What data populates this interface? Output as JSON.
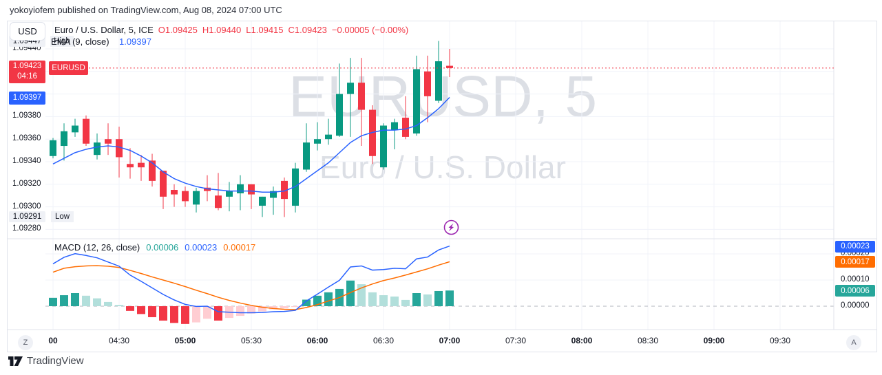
{
  "banner": {
    "text": "yokoyiofem published on TradingView.com, Aug 08, 2024 07:00 UTC"
  },
  "header": {
    "currency_button": "USD",
    "symbol": {
      "title": "Euro / U.S. Dollar, 5, ICE",
      "o": "O1.09425",
      "h": "H1.09440",
      "l": "L1.09415",
      "c": "C1.09423",
      "chg": "−0.00005 (−0.00%)"
    },
    "ema": {
      "badge": "High",
      "label": "EMA (9, close)",
      "value": "1.09397"
    }
  },
  "macd_legend": {
    "label": "MACD (12, 26, close)",
    "hist_value": "0.00006",
    "macd_value": "0.00023",
    "signal_value": "0.00017"
  },
  "badges": {
    "symbol": "EURUSD",
    "last_price": "1.09423",
    "countdown": "04:16",
    "ema_value": "1.09397",
    "high_price": "1.09447",
    "low_price": "1.09291",
    "low_tag": "Low"
  },
  "watermark": {
    "line1": "EURUSD, 5",
    "line2": "Euro / U.S. Dollar"
  },
  "left_axis": {
    "labels": [
      {
        "text": "1.09440",
        "price": 1.0944
      },
      {
        "text": "1.09380",
        "price": 1.0938
      },
      {
        "text": "1.09360",
        "price": 1.0936
      },
      {
        "text": "1.09340",
        "price": 1.0934
      },
      {
        "text": "1.09320",
        "price": 1.0932
      },
      {
        "text": "1.09300",
        "price": 1.093
      },
      {
        "text": "1.09280",
        "price": 1.0928
      }
    ]
  },
  "right_axis": {
    "labels": [
      {
        "text": "0.00020",
        "value": 0.0002
      },
      {
        "text": "0.00010",
        "value": 0.0001
      },
      {
        "text": "0.00000",
        "value": 0.0
      }
    ],
    "macd_badge": {
      "text": "0.00023",
      "value": 0.00023
    },
    "signal_badge": {
      "text": "0.00017",
      "value": 0.00017
    },
    "hist_badge": {
      "text": "0.00006",
      "value": 6e-05
    }
  },
  "time_axis": {
    "ticks": [
      {
        "label": "00",
        "bold": true
      },
      {
        "label": "04:30",
        "bold": false
      },
      {
        "label": "05:00",
        "bold": true
      },
      {
        "label": "05:30",
        "bold": false
      },
      {
        "label": "06:00",
        "bold": true
      },
      {
        "label": "06:30",
        "bold": false
      },
      {
        "label": "07:00",
        "bold": true
      },
      {
        "label": "07:30",
        "bold": false
      },
      {
        "label": "08:00",
        "bold": true
      },
      {
        "label": "08:30",
        "bold": false
      },
      {
        "label": "09:00",
        "bold": true
      },
      {
        "label": "09:30",
        "bold": false
      }
    ]
  },
  "buttons": {
    "zoom_label": "Z",
    "auto_label": "A"
  },
  "footer": {
    "brand": "TradingView"
  },
  "colors": {
    "up": "#089981",
    "down": "#f23645",
    "ema": "#2962ff",
    "macd_line": "#2962ff",
    "signal_line": "#ff6d00",
    "hist_grow_above": "#26a69a",
    "hist_fall_above": "#b2dfdb",
    "hist_fall_below": "#f23645",
    "hist_grow_below": "#ffcdd2",
    "grid": "#f0f3fa",
    "border": "#e0e3eb",
    "zero_dash": "#b2b5be",
    "text": "#131722",
    "watermark": "#dcdfe5",
    "flash": "#9c27b0",
    "badge_gray": "#eff1f6"
  },
  "chart_data": [
    {
      "type": "candlestick",
      "title": "Euro / U.S. Dollar, 5, ICE",
      "interval": "5",
      "x_ticks": [
        "00",
        "04:30",
        "05:00",
        "05:30",
        "06:00",
        "06:30",
        "07:00",
        "07:30",
        "08:00",
        "08:30",
        "09:00",
        "09:30"
      ],
      "ylim": [
        1.09268,
        1.09464
      ],
      "grid_step": 0.0002,
      "last_price": 1.09423,
      "ema_value": 1.09397,
      "session_high": 1.09447,
      "session_low": 1.09291,
      "times": [
        "04:00",
        "04:05",
        "04:10",
        "04:15",
        "04:20",
        "04:25",
        "04:30",
        "04:35",
        "04:40",
        "04:45",
        "04:50",
        "04:55",
        "05:00",
        "05:05",
        "05:10",
        "05:15",
        "05:20",
        "05:25",
        "05:30",
        "05:35",
        "05:40",
        "05:45",
        "05:50",
        "05:55",
        "06:00",
        "06:05",
        "06:10",
        "06:15",
        "06:20",
        "06:25",
        "06:30",
        "06:35",
        "06:40",
        "06:45",
        "06:50",
        "06:55",
        "07:00"
      ],
      "ohlc": [
        [
          1.09345,
          1.09361,
          1.09343,
          1.09359
        ],
        [
          1.09354,
          1.09374,
          1.09341,
          1.09367
        ],
        [
          1.09366,
          1.09378,
          1.09362,
          1.09372
        ],
        [
          1.09378,
          1.09381,
          1.09354,
          1.09356
        ],
        [
          1.09346,
          1.09365,
          1.09342,
          1.09357
        ],
        [
          1.0936,
          1.09374,
          1.09346,
          1.09356
        ],
        [
          1.0936,
          1.09371,
          1.09326,
          1.09344
        ],
        [
          1.09338,
          1.09352,
          1.09325,
          1.09335
        ],
        [
          1.09339,
          1.09346,
          1.09323,
          1.09335
        ],
        [
          1.09341,
          1.09347,
          1.09318,
          1.09323
        ],
        [
          1.09332,
          1.09332,
          1.09298,
          1.09309
        ],
        [
          1.09315,
          1.0932,
          1.093,
          1.09311
        ],
        [
          1.09314,
          1.09318,
          1.093,
          1.09305
        ],
        [
          1.09302,
          1.09317,
          1.09295,
          1.09314
        ],
        [
          1.09317,
          1.09328,
          1.09305,
          1.09314
        ],
        [
          1.0931,
          1.0933,
          1.09297,
          1.09299
        ],
        [
          1.09309,
          1.09322,
          1.09296,
          1.09314
        ],
        [
          1.09312,
          1.09328,
          1.09297,
          1.0932
        ],
        [
          1.0932,
          1.0932,
          1.09298,
          1.09311
        ],
        [
          1.09301,
          1.09309,
          1.09291,
          1.09309
        ],
        [
          1.09308,
          1.09318,
          1.09293,
          1.09314
        ],
        [
          1.09323,
          1.09326,
          1.09291,
          1.09307
        ],
        [
          1.09301,
          1.09339,
          1.09295,
          1.09334
        ],
        [
          1.09333,
          1.09374,
          1.09331,
          1.09357
        ],
        [
          1.09356,
          1.09375,
          1.0935,
          1.0936
        ],
        [
          1.0936,
          1.09378,
          1.09355,
          1.09364
        ],
        [
          1.09363,
          1.09427,
          1.09362,
          1.094
        ],
        [
          1.094,
          1.09432,
          1.09362,
          1.0941
        ],
        [
          1.0941,
          1.09432,
          1.09354,
          1.09386
        ],
        [
          1.09386,
          1.0939,
          1.09338,
          1.09345
        ],
        [
          1.09335,
          1.09374,
          1.09333,
          1.09372
        ],
        [
          1.09368,
          1.09378,
          1.09351,
          1.09375
        ],
        [
          1.09379,
          1.09398,
          1.0936,
          1.09362
        ],
        [
          1.09365,
          1.09434,
          1.09363,
          1.09422
        ],
        [
          1.0942,
          1.09434,
          1.09375,
          1.09398
        ],
        [
          1.09394,
          1.09447,
          1.09392,
          1.09429
        ],
        [
          1.09425,
          1.0944,
          1.09415,
          1.09423
        ]
      ],
      "ema9": [
        1.09338,
        1.09343,
        1.09348,
        1.09351,
        1.09353,
        1.09354,
        1.09353,
        1.0935,
        1.09345,
        1.09339,
        1.09331,
        1.09325,
        1.09321,
        1.09318,
        1.09316,
        1.09315,
        1.09314,
        1.09314,
        1.09314,
        1.09313,
        1.09313,
        1.09314,
        1.09318,
        1.09325,
        1.09332,
        1.09339,
        1.09348,
        1.09357,
        1.09363,
        1.09366,
        1.09368,
        1.09368,
        1.09369,
        1.09372,
        1.09379,
        1.09387,
        1.09397
      ]
    },
    {
      "type": "bar",
      "name": "MACD (12, 26, close)",
      "ylim": [
        -9e-05,
        0.000258
      ],
      "grid_values": [
        0.0002,
        0.0001
      ],
      "zero_line_dashed": true,
      "macd": [
        0.000162,
        0.000187,
        0.000201,
        0.000194,
        0.000185,
        0.000169,
        0.000153,
        0.000119,
        9.5e-05,
        7e-05,
        4.5e-05,
        2.4e-05,
        7e-06,
        -1e-06,
        0.0,
        -2.1e-05,
        -2.3e-05,
        -2.5e-05,
        -2.5e-05,
        -2.4e-05,
        -2.1e-05,
        -2e-05,
        -1.6e-05,
        2e-05,
        4.6e-05,
        7.3e-05,
        9.9e-05,
        0.00015,
        0.000154,
        0.000138,
        0.00014,
        0.000145,
        0.000143,
        0.000181,
        0.000188,
        0.000215,
        0.00023
      ],
      "signal": [
        0.00013,
        0.000145,
        0.000151,
        0.000154,
        0.000155,
        0.000153,
        0.000148,
        0.000137,
        0.000125,
        0.000112,
        0.0001,
        8.8e-05,
        7.5e-05,
        6.1e-05,
        4.8e-05,
        3.4e-05,
        2.2e-05,
        1.2e-05,
        3e-06,
        -4e-06,
        -9e-06,
        -1.2e-05,
        -1.3e-05,
        -5e-06,
        6e-06,
        2e-05,
        3.3e-05,
        5.2e-05,
        7e-05,
        8.5e-05,
        9.8e-05,
        0.000108,
        0.000119,
        0.000131,
        0.000143,
        0.000157,
        0.00017
      ],
      "histogram": [
        3.2e-05,
        4.2e-05,
        5e-05,
        4e-05,
        3e-05,
        1.6e-05,
        5e-06,
        -1.8e-05,
        -3e-05,
        -4.2e-05,
        -5.5e-05,
        -6.4e-05,
        -6.8e-05,
        -6.2e-05,
        -4.8e-05,
        -5.5e-05,
        -4.5e-05,
        -3.7e-05,
        -2.8e-05,
        -2e-05,
        -1.2e-05,
        -8e-06,
        -3e-06,
        2.5e-05,
        4e-05,
        5.3e-05,
        6.6e-05,
        9.8e-05,
        8.4e-05,
        5.3e-05,
        4.2e-05,
        3.7e-05,
        2.4e-05,
        5e-05,
        4.5e-05,
        5.8e-05,
        6e-05
      ]
    }
  ]
}
